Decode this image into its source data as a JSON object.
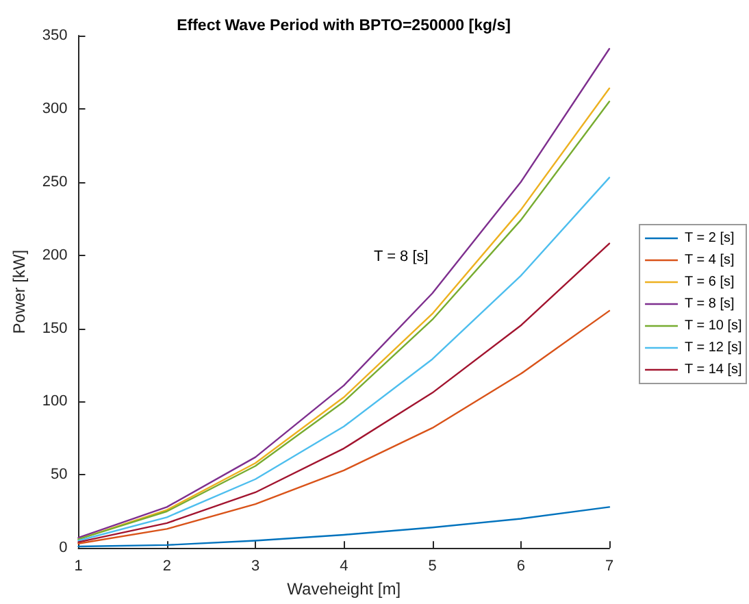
{
  "chart_data": {
    "type": "line",
    "title": "Effect Wave Period with BPTO=250000 [kg/s]",
    "xlabel": "Waveheight [m]",
    "ylabel": "Power [kW]",
    "annotations": [
      "T = 8 [s]"
    ],
    "x": [
      1,
      2,
      3,
      4,
      5,
      6,
      7
    ],
    "series": [
      {
        "name": "T = 2 [s]",
        "color": "#0072bd",
        "values": [
          1,
          2,
          5,
          9,
          14,
          20,
          28
        ]
      },
      {
        "name": "T = 4 [s]",
        "color": "#d95319",
        "values": [
          3,
          13,
          30,
          53,
          82,
          119,
          162
        ]
      },
      {
        "name": "T = 6 [s]",
        "color": "#edb120",
        "values": [
          6,
          26,
          58,
          103,
          160,
          231,
          314
        ]
      },
      {
        "name": "T = 8 [s]",
        "color": "#7e2f8e",
        "values": [
          7,
          28,
          62,
          111,
          174,
          250,
          341
        ]
      },
      {
        "name": "T = 10 [s]",
        "color": "#77ac30",
        "values": [
          6,
          25,
          56,
          100,
          156,
          224,
          305
        ]
      },
      {
        "name": "T = 12 [s]",
        "color": "#4dbeee",
        "values": [
          5,
          21,
          47,
          83,
          129,
          186,
          253
        ]
      },
      {
        "name": "T = 14 [s]",
        "color": "#a2142f",
        "values": [
          4,
          17,
          38,
          68,
          106,
          152,
          208
        ]
      }
    ],
    "xlim": [
      1,
      7
    ],
    "xticks": [
      1,
      2,
      3,
      4,
      5,
      6,
      7
    ],
    "ylim": [
      0,
      350
    ],
    "yticks": [
      0,
      50,
      100,
      150,
      200,
      250,
      300,
      350
    ],
    "grid": false,
    "legend": "right",
    "marker": "none",
    "line_style": "solid"
  }
}
